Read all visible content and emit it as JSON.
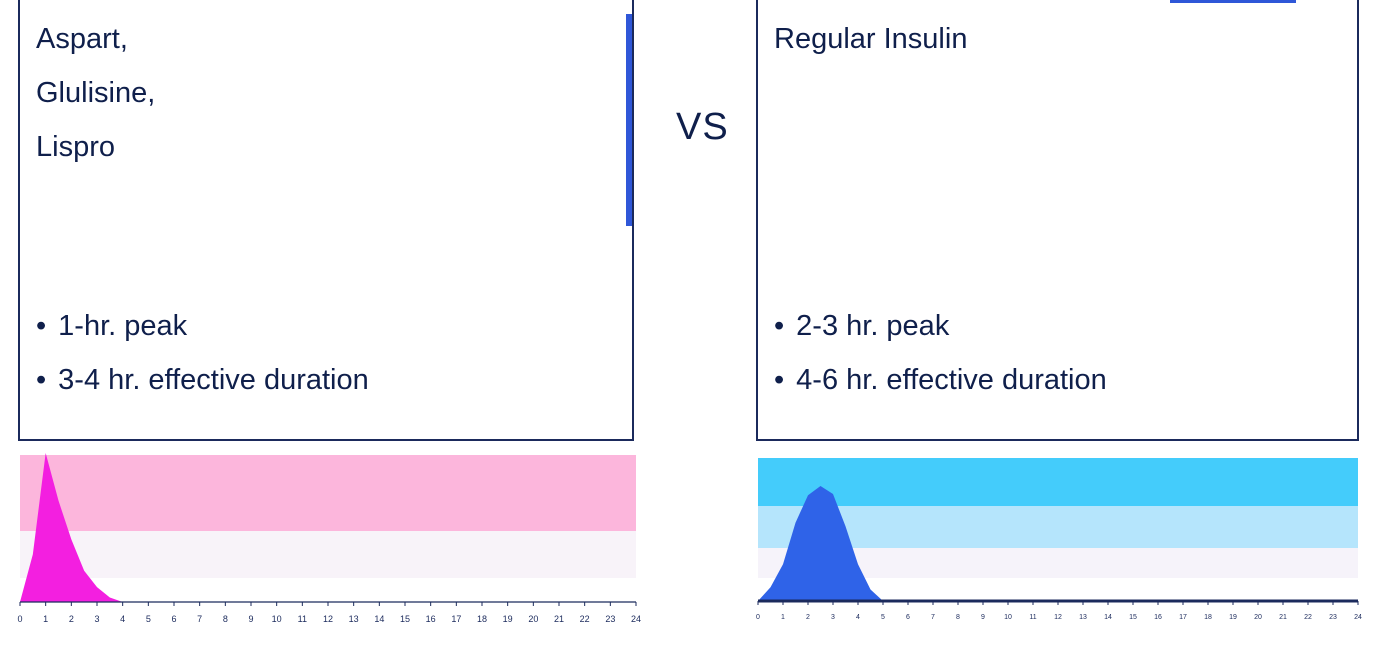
{
  "left_card": {
    "names": [
      "Aspart,",
      "Glulisine,",
      "Lispro"
    ],
    "bullets": [
      "1-hr. peak",
      "3-4 hr. effective duration"
    ]
  },
  "vs_label": "VS",
  "right_card": {
    "names": [
      "Regular Insulin"
    ],
    "bullets": [
      "2-3 hr. peak",
      "4-6 hr. effective duration"
    ]
  },
  "chart_data": [
    {
      "type": "area",
      "x": [
        0,
        0.5,
        1,
        1.5,
        2,
        2.5,
        3,
        3.5,
        4,
        24
      ],
      "values": [
        0,
        0.32,
        1.0,
        0.68,
        0.42,
        0.21,
        0.1,
        0.03,
        0,
        0
      ],
      "xlim": [
        0,
        24
      ],
      "ylim": [
        0,
        1
      ],
      "x_ticks": [
        "0",
        "1",
        "2",
        "3",
        "4",
        "5",
        "6",
        "7",
        "8",
        "9",
        "10",
        "11",
        "12",
        "13",
        "14",
        "15",
        "16",
        "17",
        "18",
        "19",
        "20",
        "21",
        "22",
        "23",
        "24"
      ],
      "grid": false,
      "colors": {
        "fill": "#f31fe0",
        "band_high": "#fcb6dc",
        "band_low": "#f8f3f9"
      }
    },
    {
      "type": "area",
      "x": [
        0,
        0.5,
        1,
        1.5,
        2,
        2.5,
        3,
        3.5,
        4,
        4.5,
        5,
        24
      ],
      "values": [
        0,
        0.12,
        0.32,
        0.68,
        0.92,
        1.0,
        0.93,
        0.65,
        0.32,
        0.1,
        0,
        0
      ],
      "xlim": [
        0,
        24
      ],
      "ylim": [
        0,
        1
      ],
      "x_ticks": [
        "0",
        "1",
        "2",
        "3",
        "4",
        "5",
        "6",
        "7",
        "8",
        "9",
        "10",
        "11",
        "12",
        "13",
        "14",
        "15",
        "16",
        "17",
        "18",
        "19",
        "20",
        "21",
        "22",
        "23",
        "24"
      ],
      "grid": false,
      "colors": {
        "fill": "#2f63e8",
        "band_high": "#44ccfb",
        "band_mid": "#b5e5fc",
        "band_low": "#f6f3fa"
      }
    }
  ]
}
